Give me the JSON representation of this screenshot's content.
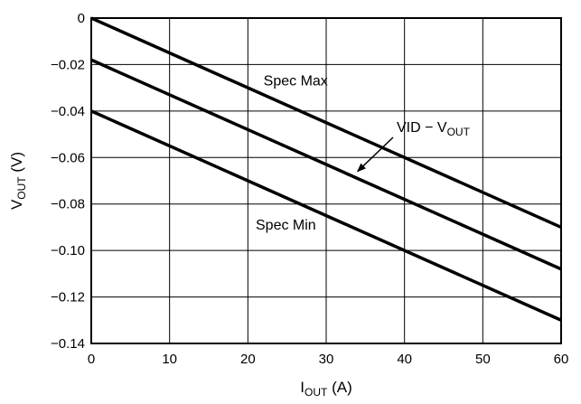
{
  "chart_data": {
    "type": "line",
    "title": "",
    "xlabel": {
      "main": "I",
      "sub": "OUT",
      "unit": " (A)"
    },
    "ylabel": {
      "main": "V",
      "sub": "OUT",
      "unit": " (V)"
    },
    "xlim": [
      0,
      60
    ],
    "ylim": [
      -0.14,
      0
    ],
    "grid": true,
    "legend": "none",
    "x_ticks": [
      0,
      10,
      20,
      30,
      40,
      50,
      60
    ],
    "x_tick_labels": [
      "0",
      "10",
      "20",
      "30",
      "40",
      "50",
      "60"
    ],
    "y_ticks": [
      0,
      -0.02,
      -0.04,
      -0.06,
      -0.08,
      -0.1,
      -0.12,
      -0.14
    ],
    "y_tick_labels": [
      "0",
      "−0.02",
      "−0.04",
      "−0.06",
      "−0.08",
      "−0.10",
      "−0.12",
      "−0.14"
    ],
    "series": [
      {
        "x": [
          0,
          60
        ],
        "y": [
          0,
          -0.09
        ],
        "color": "#000000"
      },
      {
        "x": [
          0,
          60
        ],
        "y": [
          -0.018,
          -0.108
        ],
        "color": "#000000"
      },
      {
        "x": [
          0,
          60
        ],
        "y": [
          -0.04,
          -0.13
        ],
        "color": "#000000"
      }
    ],
    "annotations": [
      {
        "text": "Spec Max",
        "x": 22,
        "y": -0.029
      },
      {
        "text": "Spec Min",
        "x": 21,
        "y": -0.091
      },
      {
        "text_main": "VID − V",
        "text_sub": "OUT",
        "x": 39,
        "y": -0.049,
        "arrow_to": [
          34,
          -0.066
        ]
      }
    ]
  }
}
